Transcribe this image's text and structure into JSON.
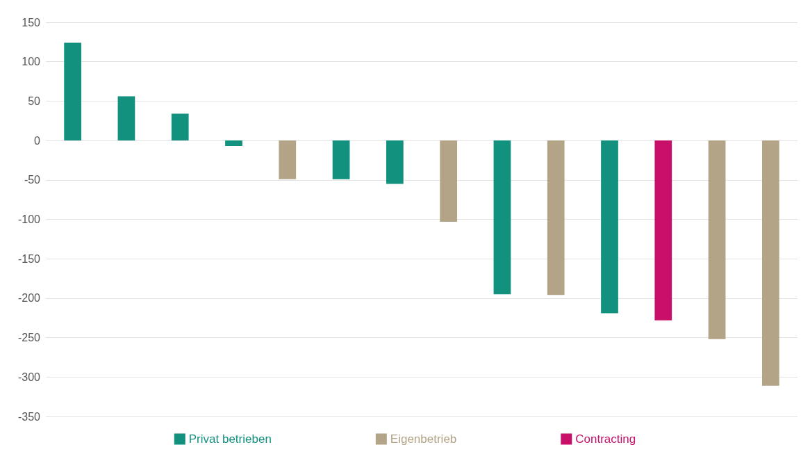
{
  "chart_data": {
    "type": "bar",
    "categories": [
      null,
      null,
      null,
      null,
      null,
      null,
      null,
      null,
      null,
      null,
      null,
      null,
      null,
      null
    ],
    "series": [
      {
        "name": "Privat betrieben",
        "color": "#12917f",
        "values": [
          124,
          56,
          34,
          -7,
          null,
          -49,
          -55,
          null,
          -195,
          null,
          -219,
          null,
          null,
          null
        ]
      },
      {
        "name": "Eigenbetrieb",
        "color": "#b3a387",
        "values": [
          null,
          null,
          null,
          null,
          -49,
          null,
          null,
          -103,
          null,
          -196,
          null,
          null,
          -252,
          -311
        ]
      },
      {
        "name": "Contracting",
        "color": "#c8106a",
        "values": [
          null,
          null,
          null,
          null,
          null,
          null,
          null,
          null,
          null,
          null,
          null,
          -228,
          null,
          null
        ]
      }
    ],
    "ylim": [
      -350,
      150
    ],
    "yticks": [
      -350,
      -300,
      -250,
      -200,
      -150,
      -100,
      -50,
      0,
      50,
      100,
      150
    ],
    "grid": "y",
    "legend": "bottom"
  }
}
